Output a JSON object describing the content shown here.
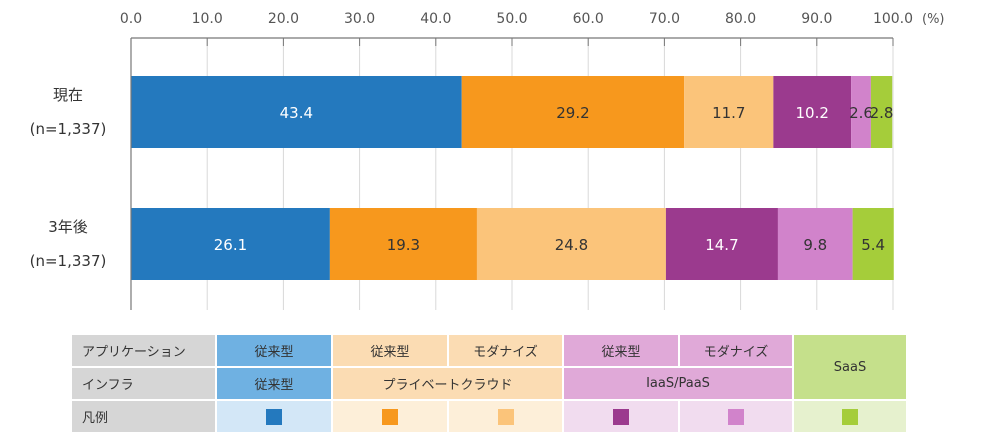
{
  "chart_data": {
    "type": "bar",
    "orientation": "horizontal",
    "stacked": true,
    "x_ticks": [
      "0.0",
      "10.0",
      "20.0",
      "30.0",
      "40.0",
      "50.0",
      "60.0",
      "70.0",
      "80.0",
      "90.0",
      "100.0"
    ],
    "xlim": [
      0,
      100
    ],
    "unit": "(%)",
    "grid": true,
    "categories": [
      {
        "label": "現在",
        "sublabel": "(n=1,337)"
      },
      {
        "label": "3年後",
        "sublabel": "(n=1,337)"
      }
    ],
    "series": [
      {
        "color": "#2479be",
        "values": [
          43.4,
          26.1
        ],
        "labels": [
          "43.4",
          "26.1"
        ],
        "label_color": "#ffffff"
      },
      {
        "color": "#f7981d",
        "values": [
          29.2,
          19.3
        ],
        "labels": [
          "29.2",
          "19.3"
        ],
        "label_color": "#333333"
      },
      {
        "color": "#fbc47a",
        "values": [
          11.7,
          24.8
        ],
        "labels": [
          "11.7",
          "24.8"
        ],
        "label_color": "#333333"
      },
      {
        "color": "#9b3a8e",
        "values": [
          10.2,
          14.7
        ],
        "labels": [
          "10.2",
          "14.7"
        ],
        "label_color": "#ffffff"
      },
      {
        "color": "#d183cb",
        "values": [
          2.6,
          9.8
        ],
        "labels": [
          "2.6",
          "9.8"
        ],
        "label_color": "#333333"
      },
      {
        "color": "#a5cd3a",
        "values": [
          2.8,
          5.4
        ],
        "labels": [
          "2.8",
          "5.4"
        ],
        "label_color": "#333333"
      }
    ]
  },
  "legend": {
    "row_headers": [
      "アプリケーション",
      "インフラ",
      "凡例"
    ],
    "app": [
      "従来型",
      "従来型",
      "モダナイズ",
      "従来型",
      "モダナイズ"
    ],
    "infra": [
      "従来型",
      "プライベートクラウド",
      "IaaS/PaaS"
    ],
    "saas": "SaaS",
    "group_bg": [
      "#6fb1e2",
      "#fbdcb3",
      "#e0a9d8",
      "#c5e08b"
    ],
    "swatch_bg": [
      "#d3e7f7",
      "#fdefd9",
      "#f1dcef",
      "#e6f1ce"
    ]
  }
}
